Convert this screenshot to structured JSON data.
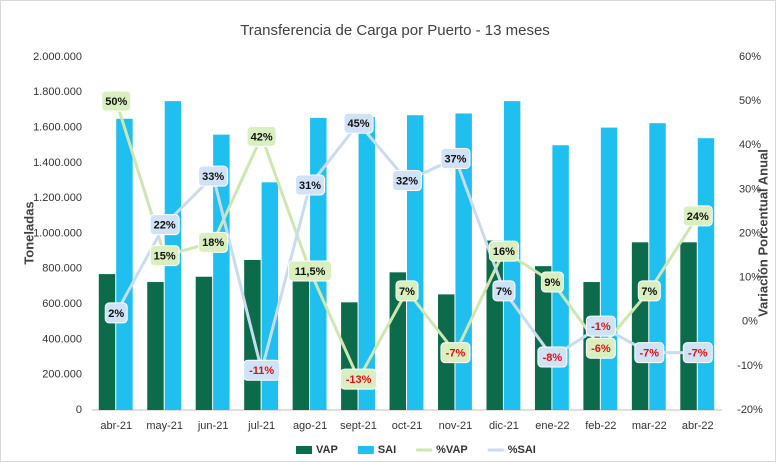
{
  "chart_data": {
    "type": "bar",
    "title": "Transferencia de Carga por Puerto - 13 meses",
    "y_label": "Toneladas",
    "y2_label": "Variación Porcentual Anual",
    "categories": [
      "abr-21",
      "may-21",
      "jun-21",
      "jul-21",
      "ago-21",
      "sept-21",
      "oct-21",
      "nov-21",
      "dic-21",
      "ene-22",
      "feb-22",
      "mar-22",
      "abr-22"
    ],
    "ylim": [
      0,
      2000000
    ],
    "yticks": [
      0,
      {
        "value": 200000,
        "label": "200.000"
      },
      {
        "value": 400000,
        "label": "400.000"
      },
      {
        "value": 600000,
        "label": "600.000"
      },
      {
        "value": 800000,
        "label": "800.000"
      },
      {
        "value": 1000000,
        "label": "1.000.000"
      },
      {
        "value": 1200000,
        "label": "1.200.000"
      },
      {
        "value": 1400000,
        "label": "1.400.000"
      },
      {
        "value": 1600000,
        "label": "1.600.000"
      },
      {
        "value": 1800000,
        "label": "1.800.000"
      },
      {
        "value": 2000000,
        "label": "2.000.000"
      }
    ],
    "y2lim": [
      -20,
      60
    ],
    "y2ticks": [
      {
        "value": -20,
        "label": "-20%"
      },
      {
        "value": -10,
        "label": "-10%"
      },
      {
        "value": 0,
        "label": "0%"
      },
      {
        "value": 10,
        "label": "10%"
      },
      {
        "value": 20,
        "label": "20%"
      },
      {
        "value": 30,
        "label": "30%"
      },
      {
        "value": 40,
        "label": "40%"
      },
      {
        "value": 50,
        "label": "50%"
      },
      {
        "value": 60,
        "label": "60%"
      }
    ],
    "grid": false,
    "legend": "bottom",
    "series": [
      {
        "name": "VAP",
        "type": "bar",
        "color": "#0b6b4a",
        "values": [
          770000,
          725000,
          755000,
          850000,
          780000,
          610000,
          780000,
          655000,
          960000,
          815000,
          725000,
          950000,
          950000
        ]
      },
      {
        "name": "SAI",
        "type": "bar",
        "color": "#1fbfef",
        "values": [
          1650000,
          1750000,
          1560000,
          1290000,
          1655000,
          1660000,
          1670000,
          1680000,
          1750000,
          1500000,
          1600000,
          1625000,
          1540000
        ]
      },
      {
        "name": "%VAP",
        "type": "line",
        "axis": "y2",
        "color": "#cfe6b0",
        "label_bg": "#d9efc0",
        "values": [
          50,
          15,
          18,
          42,
          11.5,
          -13,
          7,
          -7,
          16,
          9,
          -6,
          7,
          24
        ],
        "value_labels": [
          "50%",
          "15%",
          "18%",
          "42%",
          "11,5%",
          "-13%",
          "7%",
          "-7%",
          "16%",
          "9%",
          "-6%",
          "7%",
          "24%"
        ]
      },
      {
        "name": "%SAI",
        "type": "line",
        "axis": "y2",
        "color": "#c9dcef",
        "label_bg": "#cfe2f6",
        "values": [
          2,
          22,
          33,
          -11,
          31,
          45,
          32,
          37,
          7,
          -8,
          -1,
          -7,
          -7
        ],
        "value_labels": [
          "2%",
          "22%",
          "33%",
          "-11%",
          "31%",
          "45%",
          "32%",
          "37%",
          "7%",
          "-8%",
          "-1%",
          "-7%",
          "-7%"
        ]
      }
    ]
  }
}
